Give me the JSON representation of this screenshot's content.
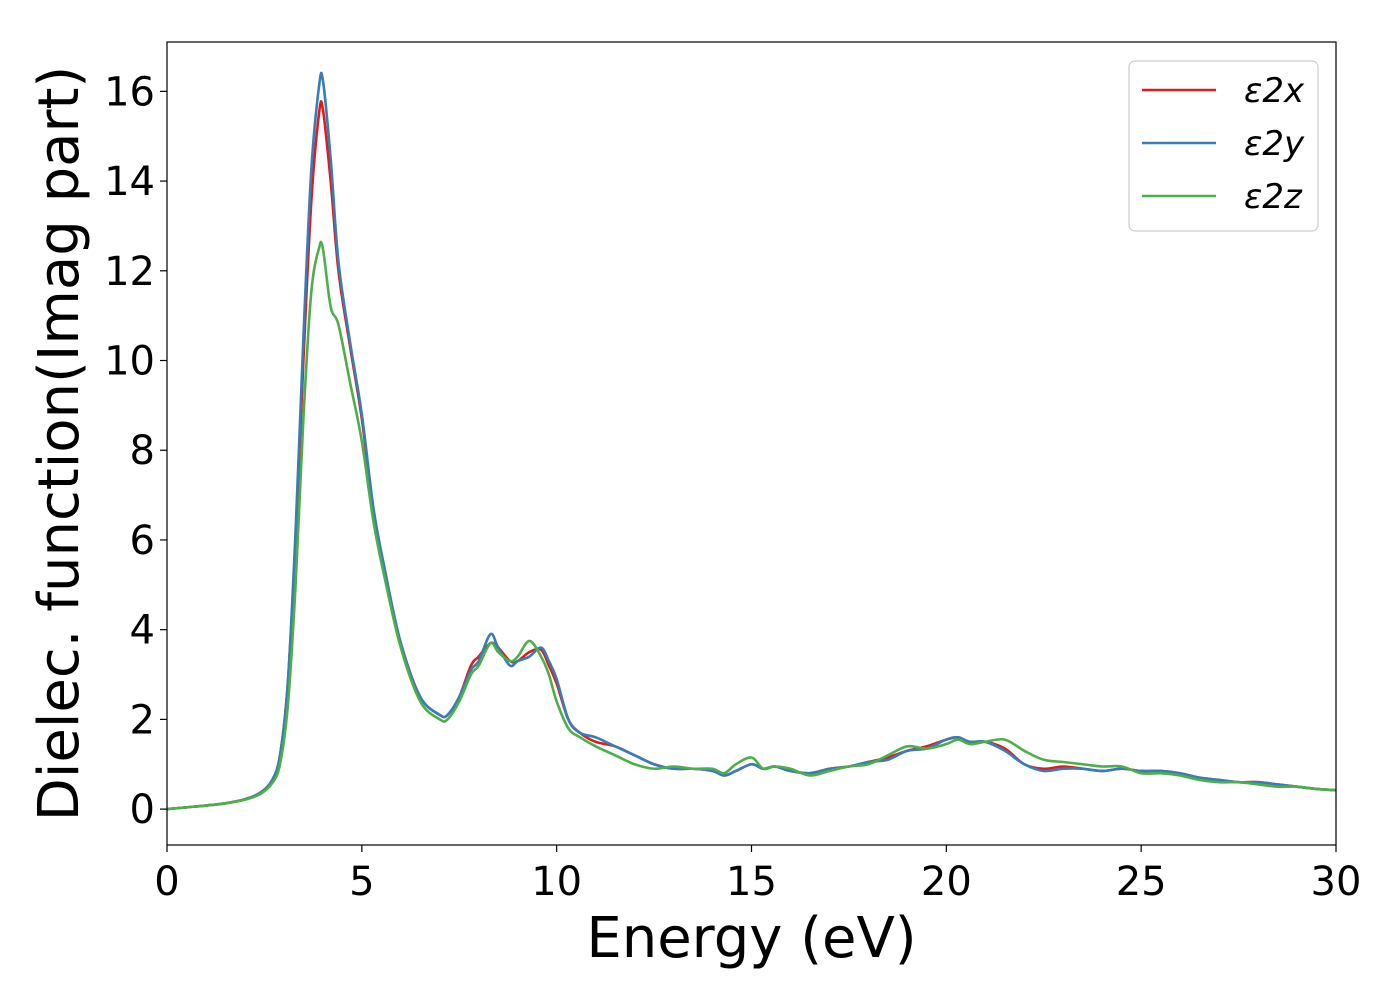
{
  "chart_data": {
    "type": "line",
    "xlabel": "Energy (eV)",
    "ylabel": "Dielec. function(Imag part)",
    "xlim": [
      0,
      30
    ],
    "ylim": [
      -0.8,
      17.1
    ],
    "xticks": [
      0,
      5,
      10,
      15,
      20,
      25,
      30
    ],
    "yticks": [
      0,
      2,
      4,
      6,
      8,
      10,
      12,
      14,
      16
    ],
    "grid": false,
    "legend_position": "top-right",
    "series": [
      {
        "name": "ε2x",
        "color": "#e31a1c",
        "x": [
          0,
          0.5,
          1,
          1.5,
          2,
          2.4,
          2.7,
          2.9,
          3.1,
          3.3,
          3.5,
          3.7,
          3.9,
          4.0,
          4.2,
          4.4,
          4.7,
          5.0,
          5.3,
          5.6,
          6.0,
          6.5,
          7.0,
          7.2,
          7.5,
          7.8,
          8.0,
          8.3,
          8.5,
          8.8,
          9.0,
          9.3,
          9.6,
          9.8,
          10.0,
          10.3,
          10.6,
          11.0,
          11.5,
          12.0,
          12.5,
          13.0,
          13.5,
          14.0,
          14.3,
          14.6,
          15.0,
          15.3,
          15.6,
          16.0,
          16.5,
          17.0,
          17.5,
          18.0,
          18.5,
          19.0,
          19.5,
          20.0,
          20.3,
          20.6,
          21.0,
          21.5,
          22.0,
          22.5,
          23.0,
          23.5,
          24.0,
          24.5,
          25.0,
          25.5,
          26.0,
          26.5,
          27.0,
          27.5,
          28.0,
          28.5,
          29.0,
          29.5,
          30.0
        ],
        "values": [
          0,
          0.04,
          0.08,
          0.13,
          0.22,
          0.37,
          0.65,
          1.2,
          2.8,
          6.0,
          10.0,
          13.5,
          15.5,
          15.6,
          14.0,
          12.0,
          10.3,
          8.7,
          6.6,
          5.2,
          3.7,
          2.5,
          2.1,
          2.1,
          2.5,
          3.2,
          3.4,
          3.7,
          3.6,
          3.3,
          3.3,
          3.5,
          3.55,
          3.2,
          2.8,
          2.0,
          1.7,
          1.5,
          1.4,
          1.2,
          1.0,
          0.9,
          0.9,
          0.85,
          0.75,
          0.85,
          1.0,
          0.9,
          0.95,
          0.85,
          0.8,
          0.9,
          0.95,
          1.05,
          1.15,
          1.3,
          1.4,
          1.55,
          1.6,
          1.5,
          1.5,
          1.35,
          1.0,
          0.9,
          0.95,
          0.9,
          0.85,
          0.9,
          0.85,
          0.85,
          0.8,
          0.7,
          0.65,
          0.6,
          0.6,
          0.55,
          0.5,
          0.45,
          0.42
        ]
      },
      {
        "name": "ε2y",
        "color": "#377eb8",
        "x": [
          0,
          0.5,
          1,
          1.5,
          2,
          2.4,
          2.7,
          2.9,
          3.1,
          3.3,
          3.5,
          3.7,
          3.9,
          4.0,
          4.2,
          4.4,
          4.7,
          5.0,
          5.3,
          5.6,
          6.0,
          6.5,
          7.0,
          7.2,
          7.5,
          7.8,
          8.0,
          8.3,
          8.5,
          8.8,
          9.0,
          9.3,
          9.6,
          9.8,
          10.0,
          10.3,
          10.6,
          11.0,
          11.5,
          12.0,
          12.5,
          13.0,
          13.5,
          14.0,
          14.3,
          14.6,
          15.0,
          15.3,
          15.6,
          16.0,
          16.5,
          17.0,
          17.5,
          18.0,
          18.5,
          19.0,
          19.5,
          20.0,
          20.3,
          20.6,
          21.0,
          21.5,
          22.0,
          22.5,
          23.0,
          23.5,
          24.0,
          24.5,
          25.0,
          25.5,
          26.0,
          26.5,
          27.0,
          27.5,
          28.0,
          28.5,
          29.0,
          29.5,
          30.0
        ],
        "values": [
          0,
          0.04,
          0.08,
          0.13,
          0.22,
          0.37,
          0.65,
          1.2,
          2.8,
          6.2,
          10.5,
          14.2,
          16.1,
          16.25,
          14.5,
          12.2,
          10.4,
          8.8,
          6.7,
          5.3,
          3.7,
          2.5,
          2.1,
          2.1,
          2.5,
          3.1,
          3.3,
          3.9,
          3.6,
          3.2,
          3.3,
          3.4,
          3.6,
          3.3,
          2.9,
          2.0,
          1.7,
          1.6,
          1.4,
          1.2,
          1.0,
          0.9,
          0.9,
          0.85,
          0.75,
          0.85,
          1.0,
          0.9,
          0.95,
          0.85,
          0.8,
          0.9,
          0.95,
          1.05,
          1.1,
          1.3,
          1.35,
          1.55,
          1.6,
          1.5,
          1.5,
          1.3,
          1.0,
          0.85,
          0.9,
          0.9,
          0.85,
          0.9,
          0.85,
          0.85,
          0.8,
          0.7,
          0.65,
          0.6,
          0.6,
          0.55,
          0.5,
          0.45,
          0.42
        ]
      },
      {
        "name": "ε2z",
        "color": "#4daf4a",
        "x": [
          0,
          0.5,
          1,
          1.5,
          2,
          2.4,
          2.7,
          2.9,
          3.1,
          3.3,
          3.5,
          3.7,
          3.9,
          4.0,
          4.2,
          4.4,
          4.7,
          5.0,
          5.3,
          5.6,
          6.0,
          6.5,
          7.0,
          7.2,
          7.5,
          7.8,
          8.0,
          8.3,
          8.5,
          8.8,
          9.0,
          9.3,
          9.6,
          9.8,
          10.0,
          10.3,
          10.6,
          11.0,
          11.5,
          12.0,
          12.5,
          13.0,
          13.5,
          14.0,
          14.3,
          14.6,
          15.0,
          15.3,
          15.6,
          16.0,
          16.5,
          17.0,
          17.5,
          18.0,
          18.5,
          19.0,
          19.5,
          20.0,
          20.3,
          20.6,
          21.0,
          21.5,
          22.0,
          22.5,
          23.0,
          23.5,
          24.0,
          24.5,
          25.0,
          25.5,
          26.0,
          26.5,
          27.0,
          27.5,
          28.0,
          28.5,
          29.0,
          29.5,
          30.0
        ],
        "values": [
          0,
          0.04,
          0.08,
          0.13,
          0.21,
          0.34,
          0.58,
          1.0,
          2.3,
          5.0,
          8.7,
          11.5,
          12.5,
          12.5,
          11.2,
          10.8,
          9.5,
          8.2,
          6.4,
          5.1,
          3.6,
          2.4,
          2.0,
          2.0,
          2.4,
          3.0,
          3.2,
          3.7,
          3.5,
          3.3,
          3.4,
          3.75,
          3.4,
          3.0,
          2.4,
          1.8,
          1.6,
          1.4,
          1.2,
          1.0,
          0.9,
          0.95,
          0.9,
          0.9,
          0.8,
          1.0,
          1.15,
          0.9,
          0.95,
          0.9,
          0.75,
          0.85,
          0.95,
          1.0,
          1.2,
          1.4,
          1.35,
          1.45,
          1.55,
          1.45,
          1.5,
          1.55,
          1.3,
          1.1,
          1.05,
          1.0,
          0.95,
          0.95,
          0.8,
          0.8,
          0.75,
          0.65,
          0.6,
          0.6,
          0.55,
          0.5,
          0.5,
          0.45,
          0.42
        ]
      }
    ]
  }
}
